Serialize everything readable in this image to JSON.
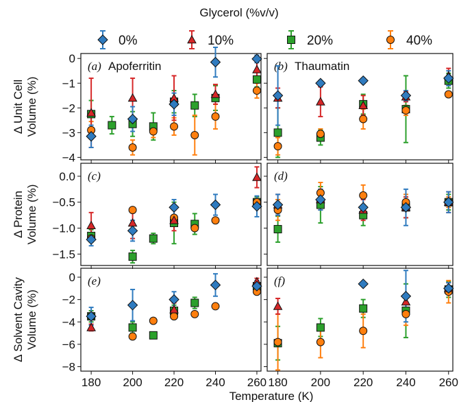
{
  "legend": {
    "title": "Glycerol (%v/v)",
    "entries": [
      {
        "label": "0%",
        "marker": "diamond",
        "color": "#2f7bbf"
      },
      {
        "label": "10%",
        "marker": "triangle",
        "color": "#d62728"
      },
      {
        "label": "20%",
        "marker": "square",
        "color": "#2ca02c"
      },
      {
        "label": "40%",
        "marker": "circle",
        "color": "#ff7f0e"
      }
    ]
  },
  "xlabel": "Temperature (K)",
  "row_labels": [
    "Δ Unit Cell Volume (%)",
    "Δ Protein Volume (%)",
    "Δ Solvent Cavity Volume (%)"
  ],
  "chart_data": [
    {
      "type": "scatter",
      "panel": "(a)",
      "title": "Apoferritin",
      "ylabel": "Δ Unit Cell Volume (%)",
      "xlim": [
        175,
        262
      ],
      "ylim": [
        -4.1,
        0.2
      ],
      "yticks": [
        0,
        -1,
        -2,
        -3,
        -4
      ],
      "xticks": [
        180,
        200,
        220,
        240,
        260
      ],
      "series": [
        {
          "name": "0%",
          "points": [
            {
              "x": 180,
              "y": -3.15,
              "err": 0.45
            },
            {
              "x": 200,
              "y": -2.45,
              "err": 0.5
            },
            {
              "x": 220,
              "y": -1.85,
              "err": 0.45
            },
            {
              "x": 240,
              "y": -0.15,
              "err": 0.6
            },
            {
              "x": 260,
              "y": -0.02,
              "err": 0.15
            }
          ]
        },
        {
          "name": "10%",
          "points": [
            {
              "x": 180,
              "y": -2.2,
              "err": 1.4
            },
            {
              "x": 200,
              "y": -1.6,
              "err": 0.8
            },
            {
              "x": 220,
              "y": -1.6,
              "err": 0.9
            },
            {
              "x": 240,
              "y": -1.45,
              "err": 0.4
            },
            {
              "x": 260,
              "y": -0.45,
              "err": 0.4
            }
          ]
        },
        {
          "name": "20%",
          "points": [
            {
              "x": 180,
              "y": -2.25,
              "err": 0.55
            },
            {
              "x": 190,
              "y": -2.7,
              "err": 0.35
            },
            {
              "x": 200,
              "y": -2.65,
              "err": 0.5
            },
            {
              "x": 210,
              "y": -2.75,
              "err": 0.55
            },
            {
              "x": 220,
              "y": -1.75,
              "err": 0.45
            },
            {
              "x": 230,
              "y": -1.9,
              "err": 0.45
            },
            {
              "x": 240,
              "y": -1.6,
              "err": 0.5
            },
            {
              "x": 260,
              "y": -0.85,
              "err": 0.3
            }
          ]
        },
        {
          "name": "40%",
          "points": [
            {
              "x": 180,
              "y": -2.9,
              "err": 0.35
            },
            {
              "x": 200,
              "y": -3.6,
              "err": 0.3
            },
            {
              "x": 210,
              "y": -2.95,
              "err": 0.25
            },
            {
              "x": 220,
              "y": -2.75,
              "err": 0.35
            },
            {
              "x": 230,
              "y": -3.1,
              "err": 0.8
            },
            {
              "x": 240,
              "y": -2.35,
              "err": 0.5
            },
            {
              "x": 260,
              "y": -1.3,
              "err": 0.3
            }
          ]
        }
      ]
    },
    {
      "type": "scatter",
      "panel": "(b)",
      "title": "Thaumatin",
      "xlim": [
        175,
        262
      ],
      "ylim": [
        -4.1,
        0.2
      ],
      "series": [
        {
          "name": "0%",
          "points": [
            {
              "x": 180,
              "y": -1.5,
              "err": 1.2
            },
            {
              "x": 200,
              "y": -1.0,
              "err": 0.1
            },
            {
              "x": 220,
              "y": -0.9,
              "err": 0.1
            },
            {
              "x": 240,
              "y": -1.5,
              "err": 0.2
            },
            {
              "x": 260,
              "y": -0.8,
              "err": 0.3
            }
          ]
        },
        {
          "name": "10%",
          "points": [
            {
              "x": 180,
              "y": -1.6,
              "err": 0.4
            },
            {
              "x": 200,
              "y": -1.75,
              "err": 0.6
            },
            {
              "x": 220,
              "y": -1.9,
              "err": 0.4
            },
            {
              "x": 240,
              "y": -1.55,
              "err": 0.2
            },
            {
              "x": 260,
              "y": -0.7,
              "err": 0.3
            }
          ]
        },
        {
          "name": "20%",
          "points": [
            {
              "x": 180,
              "y": -3.0,
              "err": 1.0
            },
            {
              "x": 200,
              "y": -3.2,
              "err": 0.3
            },
            {
              "x": 220,
              "y": -1.85,
              "err": 0.4
            },
            {
              "x": 240,
              "y": -2.05,
              "err": 1.35
            },
            {
              "x": 260,
              "y": -0.9,
              "err": 0.3
            }
          ]
        },
        {
          "name": "40%",
          "points": [
            {
              "x": 180,
              "y": -3.55,
              "err": 0.35
            },
            {
              "x": 200,
              "y": -3.05,
              "err": 0.2
            },
            {
              "x": 220,
              "y": -2.45,
              "err": 0.4
            },
            {
              "x": 240,
              "y": -2.1,
              "err": 0.2
            },
            {
              "x": 260,
              "y": -1.45,
              "err": 0.1
            }
          ]
        }
      ]
    },
    {
      "type": "scatter",
      "panel": "(c)",
      "ylabel": "Δ Protein Volume (%)",
      "xlim": [
        175,
        262
      ],
      "ylim": [
        -1.72,
        0.25
      ],
      "yticks": [
        0.0,
        -0.5,
        -1.0,
        -1.5
      ],
      "xticks": [
        180,
        200,
        220,
        240,
        260
      ],
      "series": [
        {
          "name": "0%",
          "points": [
            {
              "x": 180,
              "y": -1.22,
              "err": 0.12
            },
            {
              "x": 200,
              "y": -1.05,
              "err": 0.2
            },
            {
              "x": 220,
              "y": -0.6,
              "err": 0.15
            },
            {
              "x": 240,
              "y": -0.55,
              "err": 0.2
            },
            {
              "x": 260,
              "y": -0.58,
              "err": 0.2
            }
          ]
        },
        {
          "name": "10%",
          "points": [
            {
              "x": 180,
              "y": -0.95,
              "err": 0.25
            },
            {
              "x": 200,
              "y": -0.9,
              "err": 0.3
            },
            {
              "x": 220,
              "y": -0.85,
              "err": 0.2
            },
            {
              "x": 260,
              "y": -0.02,
              "err": 0.2
            }
          ]
        },
        {
          "name": "20%",
          "points": [
            {
              "x": 180,
              "y": -1.15,
              "err": 0.12
            },
            {
              "x": 200,
              "y": -1.55,
              "err": 0.12
            },
            {
              "x": 210,
              "y": -1.2,
              "err": 0.1
            },
            {
              "x": 220,
              "y": -0.9,
              "err": 0.4
            },
            {
              "x": 230,
              "y": -0.92,
              "err": 0.2
            },
            {
              "x": 260,
              "y": -0.5,
              "err": 0.1
            }
          ]
        },
        {
          "name": "40%",
          "points": [
            {
              "x": 180,
              "y": -1.2,
              "err": 0.05
            },
            {
              "x": 200,
              "y": -0.65,
              "err": 0.05
            },
            {
              "x": 220,
              "y": -0.8,
              "err": 0.05
            },
            {
              "x": 230,
              "y": -1.0,
              "err": 0.05
            },
            {
              "x": 240,
              "y": -0.85,
              "err": 0.05
            },
            {
              "x": 260,
              "y": -0.5,
              "err": 0.05
            }
          ]
        }
      ]
    },
    {
      "type": "scatter",
      "panel": "(d)",
      "xlim": [
        175,
        262
      ],
      "ylim": [
        -1.72,
        0.25
      ],
      "series": [
        {
          "name": "0%",
          "points": [
            {
              "x": 180,
              "y": -0.55,
              "err": 0.2
            },
            {
              "x": 200,
              "y": -0.45,
              "err": 0.2
            },
            {
              "x": 220,
              "y": -0.6,
              "err": 0.2
            },
            {
              "x": 240,
              "y": -0.6,
              "err": 0.35
            },
            {
              "x": 260,
              "y": -0.5,
              "err": 0.2
            }
          ]
        },
        {
          "name": "10%",
          "points": [
            {
              "x": 180,
              "y": -0.55,
              "err": 0.2
            },
            {
              "x": 200,
              "y": -0.45,
              "err": 0.2
            },
            {
              "x": 220,
              "y": -0.65,
              "err": 0.2
            },
            {
              "x": 240,
              "y": -0.6,
              "err": 0.2
            },
            {
              "x": 260,
              "y": -0.5,
              "err": 0.2
            }
          ]
        },
        {
          "name": "20%",
          "points": [
            {
              "x": 180,
              "y": -1.02,
              "err": 0.25
            },
            {
              "x": 200,
              "y": -0.55,
              "err": 0.35
            },
            {
              "x": 220,
              "y": -0.75,
              "err": 0.2
            },
            {
              "x": 240,
              "y": -0.6,
              "err": 0.2
            },
            {
              "x": 260,
              "y": -0.5,
              "err": 0.15
            }
          ]
        },
        {
          "name": "40%",
          "points": [
            {
              "x": 180,
              "y": -0.65,
              "err": 0.2
            },
            {
              "x": 200,
              "y": -0.32,
              "err": 0.2
            },
            {
              "x": 220,
              "y": -0.37,
              "err": 0.2
            },
            {
              "x": 240,
              "y": -0.5,
              "err": 0.15
            },
            {
              "x": 260,
              "y": -0.5,
              "err": 0.1
            }
          ]
        }
      ]
    },
    {
      "type": "scatter",
      "panel": "(e)",
      "ylabel": "Δ Solvent Cavity Volume (%)",
      "xlim": [
        175,
        262
      ],
      "ylim": [
        -8.4,
        0.8
      ],
      "yticks": [
        0,
        -2,
        -4,
        -6,
        -8
      ],
      "xticks": [
        180,
        200,
        220,
        240,
        260
      ],
      "series": [
        {
          "name": "0%",
          "points": [
            {
              "x": 180,
              "y": -3.5,
              "err": 0.8
            },
            {
              "x": 200,
              "y": -2.5,
              "err": 1.4
            },
            {
              "x": 220,
              "y": -2.0,
              "err": 0.7
            },
            {
              "x": 240,
              "y": -0.7,
              "err": 1.0
            },
            {
              "x": 260,
              "y": -0.8,
              "err": 0.5
            }
          ]
        },
        {
          "name": "10%",
          "points": [
            {
              "x": 180,
              "y": -4.5,
              "err": 0.3
            },
            {
              "x": 220,
              "y": -2.9,
              "err": 0.6
            },
            {
              "x": 260,
              "y": -0.4,
              "err": 0.3
            }
          ]
        },
        {
          "name": "20%",
          "points": [
            {
              "x": 180,
              "y": -3.5,
              "err": 0.5
            },
            {
              "x": 200,
              "y": -4.5,
              "err": 0.5
            },
            {
              "x": 210,
              "y": -5.2,
              "err": 0.2
            },
            {
              "x": 220,
              "y": -3.0,
              "err": 0.5
            },
            {
              "x": 230,
              "y": -2.3,
              "err": 0.5
            },
            {
              "x": 260,
              "y": -0.8,
              "err": 0.3
            }
          ]
        },
        {
          "name": "40%",
          "points": [
            {
              "x": 180,
              "y": -3.5,
              "err": 0.1
            },
            {
              "x": 200,
              "y": -5.3,
              "err": 0.1
            },
            {
              "x": 210,
              "y": -3.9,
              "err": 0.1
            },
            {
              "x": 220,
              "y": -3.5,
              "err": 0.1
            },
            {
              "x": 230,
              "y": -3.3,
              "err": 0.1
            },
            {
              "x": 240,
              "y": -2.6,
              "err": 0.1
            },
            {
              "x": 260,
              "y": -1.3,
              "err": 0.1
            }
          ]
        }
      ]
    },
    {
      "type": "scatter",
      "panel": "(f)",
      "xlim": [
        175,
        262
      ],
      "ylim": [
        -8.4,
        0.8
      ],
      "series": [
        {
          "name": "0%",
          "points": [
            {
              "x": 220,
              "y": -0.6,
              "err": 0.1
            },
            {
              "x": 240,
              "y": -1.7,
              "err": 2.3
            },
            {
              "x": 260,
              "y": -1.0,
              "err": 0.5
            }
          ]
        },
        {
          "name": "10%",
          "points": [
            {
              "x": 180,
              "y": -2.6,
              "err": 0.7
            },
            {
              "x": 240,
              "y": -2.2,
              "err": 0.7
            },
            {
              "x": 260,
              "y": -1.0,
              "err": 0.5
            }
          ]
        },
        {
          "name": "20%",
          "points": [
            {
              "x": 180,
              "y": -5.9,
              "err": 1.5
            },
            {
              "x": 200,
              "y": -4.5,
              "err": 0.8
            },
            {
              "x": 220,
              "y": -2.8,
              "err": 0.8
            },
            {
              "x": 240,
              "y": -3.0,
              "err": 2.4
            },
            {
              "x": 260,
              "y": -1.1,
              "err": 0.7
            }
          ]
        },
        {
          "name": "40%",
          "points": [
            {
              "x": 180,
              "y": -5.8,
              "err": 2.5
            },
            {
              "x": 200,
              "y": -5.8,
              "err": 1.4
            },
            {
              "x": 220,
              "y": -4.8,
              "err": 1.5
            },
            {
              "x": 240,
              "y": -3.3,
              "err": 1.0
            },
            {
              "x": 260,
              "y": -1.3,
              "err": 1.0
            }
          ]
        }
      ]
    }
  ]
}
